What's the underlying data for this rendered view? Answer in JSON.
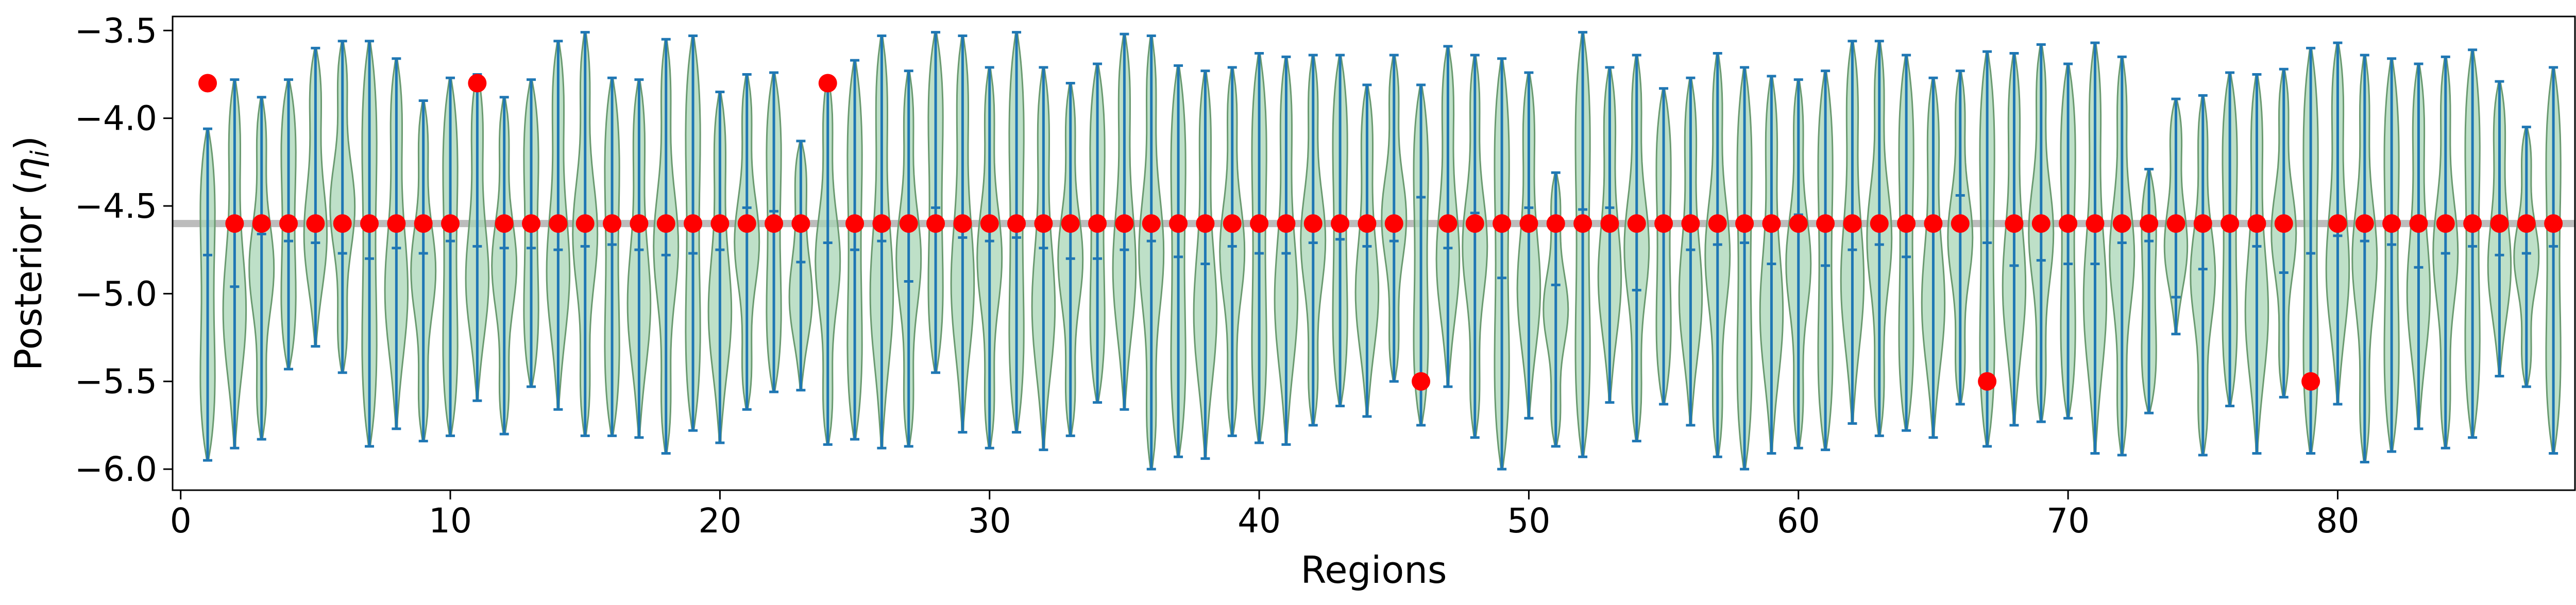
{
  "chart_data": {
    "type": "violin",
    "xlabel": "Regions",
    "ylabel": "Posterior (",
    "ylabel_symbol": "η",
    "ylabel_subscript": "i",
    "ylabel_close": ")",
    "xlim": [
      -0.3,
      88.8
    ],
    "ylim": [
      -6.12,
      -3.42
    ],
    "xticks": [
      0,
      10,
      20,
      30,
      40,
      50,
      60,
      70,
      80
    ],
    "yticks": [
      -6.0,
      -5.5,
      -5.0,
      -4.5,
      -4.0,
      -3.5
    ],
    "ytick_labels": [
      "−6.0",
      "−5.5",
      "−5.0",
      "−4.5",
      "−4.0",
      "−3.5"
    ],
    "reference_line": -4.6,
    "grid": false,
    "colors": {
      "violin_fill": "#a8d5b5",
      "violin_edge": "#6a9a70",
      "violin_lines": "#1f77b4",
      "true_values": "#ff0000",
      "reference_line": "#b0b0b0"
    },
    "regions": [
      1,
      2,
      3,
      4,
      5,
      6,
      7,
      8,
      9,
      10,
      11,
      12,
      13,
      14,
      15,
      16,
      17,
      18,
      19,
      20,
      21,
      22,
      23,
      24,
      25,
      26,
      27,
      28,
      29,
      30,
      31,
      32,
      33,
      34,
      35,
      36,
      37,
      38,
      39,
      40,
      41,
      42,
      43,
      44,
      45,
      46,
      47,
      48,
      49,
      50,
      51,
      52,
      53,
      54,
      55,
      56,
      57,
      58,
      59,
      60,
      61,
      62,
      63,
      64,
      65,
      66,
      67,
      68,
      69,
      70,
      71,
      72,
      73,
      74,
      75,
      76,
      77,
      78,
      79,
      80,
      81,
      82,
      83,
      84,
      85,
      86,
      87,
      88
    ],
    "violin_max": [
      -4.06,
      -3.78,
      -3.88,
      -3.78,
      -3.6,
      -3.56,
      -3.56,
      -3.66,
      -3.9,
      -3.77,
      -3.75,
      -3.88,
      -3.78,
      -3.56,
      -3.51,
      -3.77,
      -3.78,
      -3.55,
      -3.53,
      -3.85,
      -3.75,
      -3.74,
      -4.13,
      -3.77,
      -3.67,
      -3.53,
      -3.73,
      -3.51,
      -3.53,
      -3.71,
      -3.51,
      -3.71,
      -3.8,
      -3.69,
      -3.52,
      -3.53,
      -3.7,
      -3.73,
      -3.71,
      -3.63,
      -3.65,
      -3.64,
      -3.64,
      -3.81,
      -3.64,
      -3.81,
      -3.59,
      -3.64,
      -3.66,
      -3.74,
      -4.31,
      -3.51,
      -3.71,
      -3.64,
      -3.83,
      -3.77,
      -3.63,
      -3.71,
      -3.76,
      -3.78,
      -3.73,
      -3.56,
      -3.56,
      -3.64,
      -3.77,
      -3.73,
      -3.62,
      -3.63,
      -3.58,
      -3.69,
      -3.57,
      -3.65,
      -4.29,
      -3.89,
      -3.87,
      -3.74,
      -3.75,
      -3.72,
      -3.6,
      -3.57,
      -3.64,
      -3.66,
      -3.69,
      -3.65,
      -3.61,
      -3.79,
      -4.05,
      -3.71
    ],
    "violin_min": [
      -5.95,
      -5.88,
      -5.83,
      -5.43,
      -5.3,
      -5.45,
      -5.87,
      -5.77,
      -5.84,
      -5.81,
      -5.61,
      -5.8,
      -5.53,
      -5.66,
      -5.81,
      -5.81,
      -5.82,
      -5.91,
      -5.78,
      -5.85,
      -5.66,
      -5.56,
      -5.55,
      -5.86,
      -5.83,
      -5.88,
      -5.87,
      -5.45,
      -5.79,
      -5.88,
      -5.79,
      -5.89,
      -5.81,
      -5.62,
      -5.66,
      -6.0,
      -5.93,
      -5.94,
      -5.81,
      -5.85,
      -5.86,
      -5.75,
      -5.64,
      -5.7,
      -5.5,
      -5.75,
      -5.53,
      -5.82,
      -6.0,
      -5.71,
      -5.87,
      -5.93,
      -5.62,
      -5.84,
      -5.63,
      -5.75,
      -5.93,
      -6.0,
      -5.91,
      -5.88,
      -5.89,
      -5.74,
      -5.81,
      -5.78,
      -5.82,
      -5.63,
      -5.87,
      -5.75,
      -5.73,
      -5.71,
      -5.91,
      -5.92,
      -5.68,
      -5.23,
      -5.92,
      -5.64,
      -5.91,
      -5.59,
      -5.91,
      -5.63,
      -5.96,
      -5.9,
      -5.77,
      -5.88,
      -5.82,
      -5.47,
      -5.53,
      -5.91
    ],
    "violin_median": [
      -4.78,
      -4.96,
      -4.66,
      -4.7,
      -4.71,
      -4.77,
      -4.8,
      -4.74,
      -4.77,
      -4.7,
      -4.73,
      -4.74,
      -4.74,
      -4.75,
      -4.73,
      -4.72,
      -4.75,
      -4.78,
      -4.77,
      -4.75,
      -4.51,
      -4.53,
      -4.82,
      -4.71,
      -4.75,
      -4.7,
      -4.93,
      -4.51,
      -4.68,
      -4.7,
      -4.68,
      -4.74,
      -4.8,
      -4.8,
      -4.75,
      -4.7,
      -4.79,
      -4.83,
      -4.73,
      -4.77,
      -4.77,
      -4.71,
      -4.69,
      -4.73,
      -4.7,
      -4.45,
      -4.74,
      -4.54,
      -4.91,
      -4.51,
      -4.95,
      -4.52,
      -4.51,
      -4.98,
      -4.59,
      -4.75,
      -4.72,
      -4.71,
      -4.83,
      -4.55,
      -4.84,
      -4.75,
      -4.72,
      -4.79,
      -4.61,
      -4.44,
      -4.71,
      -4.84,
      -4.81,
      -4.83,
      -4.83,
      -4.71,
      -4.7,
      -5.02,
      -4.86,
      -4.57,
      -4.73,
      -4.88,
      -4.77,
      -4.67,
      -4.7,
      -4.72,
      -4.85,
      -4.77,
      -4.73,
      -4.78,
      -4.77,
      -4.73
    ],
    "true_values": [
      -3.8,
      -4.6,
      -4.6,
      -4.6,
      -4.6,
      -4.6,
      -4.6,
      -4.6,
      -4.6,
      -4.6,
      -3.8,
      -4.6,
      -4.6,
      -4.6,
      -4.6,
      -4.6,
      -4.6,
      -4.6,
      -4.6,
      -4.6,
      -4.6,
      -4.6,
      -4.6,
      -3.8,
      -4.6,
      -4.6,
      -4.6,
      -4.6,
      -4.6,
      -4.6,
      -4.6,
      -4.6,
      -4.6,
      -4.6,
      -4.6,
      -4.6,
      -4.6,
      -4.6,
      -4.6,
      -4.6,
      -4.6,
      -4.6,
      -4.6,
      -4.6,
      -4.6,
      -5.5,
      -4.6,
      -4.6,
      -4.6,
      -4.6,
      -4.6,
      -4.6,
      -4.6,
      -4.6,
      -4.6,
      -4.6,
      -4.6,
      -4.6,
      -4.6,
      -4.6,
      -4.6,
      -4.6,
      -4.6,
      -4.6,
      -4.6,
      -4.6,
      -5.5,
      -4.6,
      -4.6,
      -4.6,
      -4.6,
      -4.6,
      -4.6,
      -4.6,
      -4.6,
      -4.6,
      -4.6,
      -4.6,
      -5.5,
      -4.6,
      -4.6,
      -4.6,
      -4.6,
      -4.6,
      -4.6,
      -4.6,
      -4.6,
      -4.6
    ]
  }
}
